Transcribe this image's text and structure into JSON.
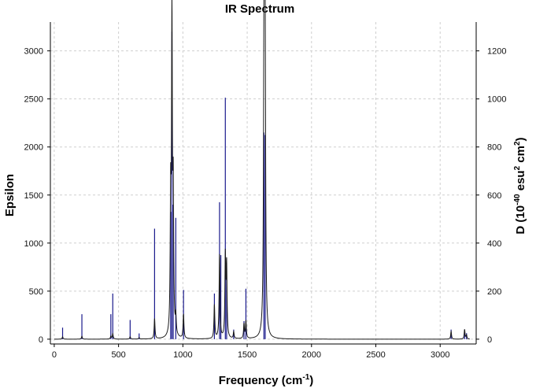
{
  "chart_data": {
    "type": "line",
    "title": "IR Spectrum",
    "xlabel": {
      "main": "Frequency (cm",
      "sup": "-1",
      "end": ")"
    },
    "ylabel": "Epsilon",
    "y2label": {
      "pre": "D (10",
      "sup1": "-40",
      "mid": " esu",
      "sup2": "2",
      "mid2": " cm",
      "sup3": "2",
      "end": ")"
    },
    "xlim": [
      -30,
      3280
    ],
    "ylim": [
      -50,
      3300
    ],
    "y2lim": [
      -20,
      1320
    ],
    "grid": true,
    "x_ticks": [
      0,
      500,
      1000,
      1500,
      2000,
      2500,
      3000
    ],
    "y_ticks": [
      0,
      500,
      1000,
      1500,
      2000,
      2500,
      3000
    ],
    "y2_ticks": [
      0,
      200,
      400,
      600,
      800,
      1000,
      1200
    ],
    "colors": {
      "spectrum": "#1a1a1a",
      "sticks": "#1a1a8c",
      "grid": "#cfcfcf",
      "axis": "#000000"
    },
    "sticks_units": "D (10^-40 esu^2 cm^2)",
    "sticks": [
      {
        "x": 65,
        "value": 48
      },
      {
        "x": 215,
        "value": 104
      },
      {
        "x": 440,
        "value": 104
      },
      {
        "x": 455,
        "value": 190
      },
      {
        "x": 590,
        "value": 80
      },
      {
        "x": 660,
        "value": 24
      },
      {
        "x": 780,
        "value": 460
      },
      {
        "x": 905,
        "value": 530
      },
      {
        "x": 915,
        "value": 1280
      },
      {
        "x": 925,
        "value": 560
      },
      {
        "x": 945,
        "value": 505
      },
      {
        "x": 1005,
        "value": 205
      },
      {
        "x": 1245,
        "value": 190
      },
      {
        "x": 1285,
        "value": 570
      },
      {
        "x": 1295,
        "value": 350
      },
      {
        "x": 1330,
        "value": 1005
      },
      {
        "x": 1340,
        "value": 295
      },
      {
        "x": 1395,
        "value": 40
      },
      {
        "x": 1475,
        "value": 75
      },
      {
        "x": 1490,
        "value": 210
      },
      {
        "x": 1630,
        "value": 860
      },
      {
        "x": 1640,
        "value": 850
      },
      {
        "x": 3085,
        "value": 40
      },
      {
        "x": 3190,
        "value": 40
      },
      {
        "x": 3205,
        "value": 25
      }
    ],
    "peaks": [
      {
        "x": 65,
        "value": 25,
        "width": 8
      },
      {
        "x": 215,
        "value": 30,
        "width": 8
      },
      {
        "x": 440,
        "value": 30,
        "width": 8
      },
      {
        "x": 455,
        "value": 55,
        "width": 8
      },
      {
        "x": 590,
        "value": 25,
        "width": 8
      },
      {
        "x": 660,
        "value": 15,
        "width": 8
      },
      {
        "x": 780,
        "value": 210,
        "width": 8
      },
      {
        "x": 905,
        "value": 1330,
        "width": 8
      },
      {
        "x": 915,
        "value": 3200,
        "width": 8
      },
      {
        "x": 925,
        "value": 1390,
        "width": 8
      },
      {
        "x": 945,
        "value": 180,
        "width": 8
      },
      {
        "x": 1005,
        "value": 250,
        "width": 8
      },
      {
        "x": 1245,
        "value": 350,
        "width": 8
      },
      {
        "x": 1285,
        "value": 870,
        "width": 8
      },
      {
        "x": 1330,
        "value": 830,
        "width": 8
      },
      {
        "x": 1340,
        "value": 730,
        "width": 8
      },
      {
        "x": 1395,
        "value": 70,
        "width": 8
      },
      {
        "x": 1475,
        "value": 150,
        "width": 8
      },
      {
        "x": 1490,
        "value": 180,
        "width": 8
      },
      {
        "x": 1630,
        "value": 2150,
        "width": 8
      },
      {
        "x": 1635,
        "value": 3150,
        "width": 8
      },
      {
        "x": 1640,
        "value": 2100,
        "width": 8
      },
      {
        "x": 3085,
        "value": 80,
        "width": 8
      },
      {
        "x": 3190,
        "value": 100,
        "width": 8
      },
      {
        "x": 3205,
        "value": 40,
        "width": 8
      }
    ]
  }
}
